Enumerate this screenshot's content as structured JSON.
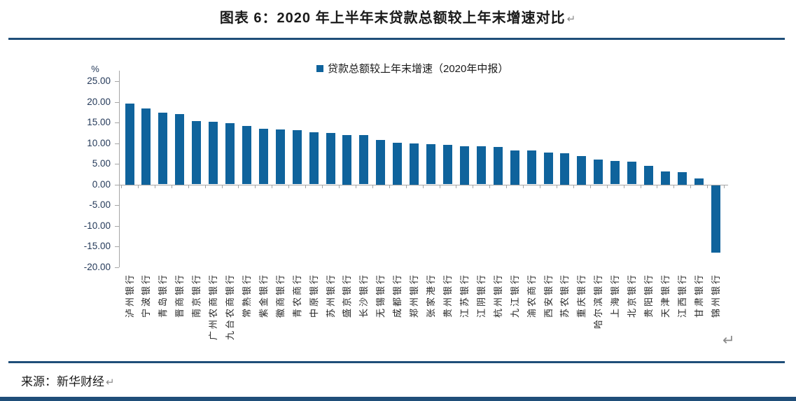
{
  "page": {
    "title": "图表 6：2020 年上半年末贷款总额较上年末增速对比",
    "source_label": "来源：新华财经",
    "return_mark": "↵"
  },
  "colors": {
    "bar": "#0F639C",
    "rule": "#1F4E79",
    "axis": "#A6A6A6",
    "axis_label": "#253A5A"
  },
  "chart_data": {
    "type": "bar",
    "title": "图表 6：2020 年上半年末贷款总额较上年末增速对比",
    "legend": [
      "贷款总额较上年末增速（2020年中报）"
    ],
    "unit_label": "%",
    "xlabel": "",
    "ylabel": "%",
    "ylim": [
      -20,
      25
    ],
    "ytick_step": 5,
    "ytick_labels": [
      "25.00",
      "20.00",
      "15.00",
      "10.00",
      "5.00",
      "0.00",
      "-5.00",
      "-10.00",
      "-15.00",
      "-20.00"
    ],
    "grid": false,
    "legend_position": "top-center",
    "categories": [
      "泸州银行",
      "宁波银行",
      "青岛银行",
      "晋商银行",
      "南京银行",
      "广州农商银行",
      "九台农商银行",
      "常熟银行",
      "紫金银行",
      "徽商银行",
      "青农商行",
      "中原银行",
      "苏州银行",
      "盛京银行",
      "长沙银行",
      "无锡银行",
      "成都银行",
      "郑州银行",
      "张家港行",
      "贵州银行",
      "江苏银行",
      "江阴银行",
      "杭州银行",
      "九江银行",
      "渝农商行",
      "西安银行",
      "苏农银行",
      "重庆银行",
      "哈尔滨银行",
      "上海银行",
      "北京银行",
      "贵阳银行",
      "天津银行",
      "江西银行",
      "甘肃银行",
      "锦州银行"
    ],
    "values": [
      19.6,
      18.4,
      17.3,
      17.1,
      15.3,
      15.1,
      14.8,
      14.1,
      13.4,
      13.3,
      13.1,
      12.6,
      12.4,
      12.0,
      11.9,
      10.8,
      10.1,
      10.0,
      9.7,
      9.5,
      9.3,
      9.2,
      9.1,
      8.3,
      8.2,
      7.7,
      7.6,
      6.9,
      6.0,
      5.6,
      5.5,
      4.5,
      3.2,
      3.0,
      1.5,
      -16.2
    ]
  }
}
